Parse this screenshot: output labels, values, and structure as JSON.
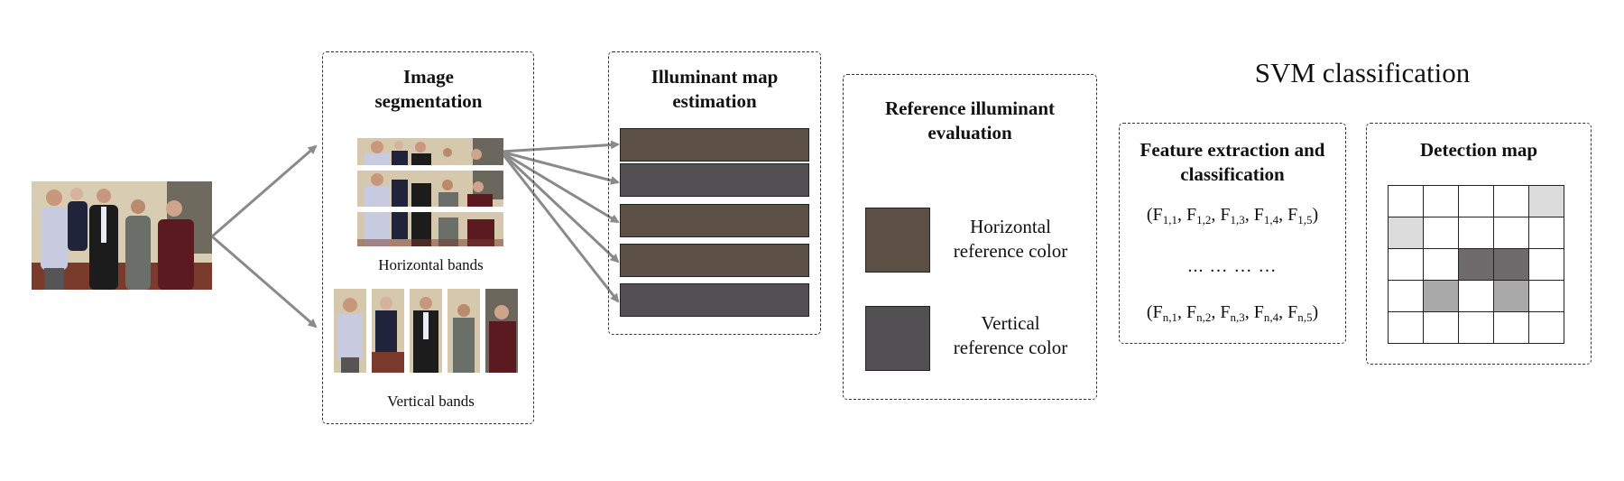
{
  "colors": {
    "horizontal_reference": "#5c5044",
    "vertical_reference": "#535053",
    "arrow": "#8a8a8a",
    "grid_dark": "#6f6a6b",
    "grid_mid": "#a9a9a9",
    "grid_light": "#dcdcdc"
  },
  "segmentation": {
    "title": "Image segmentation",
    "horizontal_label": "Horizontal bands",
    "vertical_label": "Vertical bands"
  },
  "illuminant_map": {
    "title": "Illuminant map estimation",
    "bands": [
      "horizontal",
      "vertical",
      "horizontal",
      "horizontal",
      "vertical"
    ]
  },
  "reference": {
    "title": "Reference illuminant evaluation",
    "horizontal_line1": "Horizontal",
    "horizontal_line2": "reference color",
    "vertical_line1": "Vertical",
    "vertical_line2": "reference color"
  },
  "svm": {
    "title": "SVM classification",
    "feature": {
      "title": "Feature extraction and classification",
      "row_first": "(F1,1, F1,2, F1,3, F1,4, F1,5)",
      "ellipsis": "... …  … …",
      "row_last": "(Fn,1, Fn,2, Fn,3, Fn,4, Fn,5)"
    },
    "detection": {
      "title": "Detection map",
      "grid": [
        [
          "white",
          "white",
          "white",
          "white",
          "light"
        ],
        [
          "light",
          "white",
          "white",
          "white",
          "white"
        ],
        [
          "white",
          "white",
          "dark",
          "dark",
          "white"
        ],
        [
          "white",
          "mid",
          "white",
          "mid",
          "white"
        ],
        [
          "white",
          "white",
          "white",
          "white",
          "white"
        ]
      ]
    }
  },
  "icons": [
    "photo-thumbnail",
    "arrow"
  ]
}
